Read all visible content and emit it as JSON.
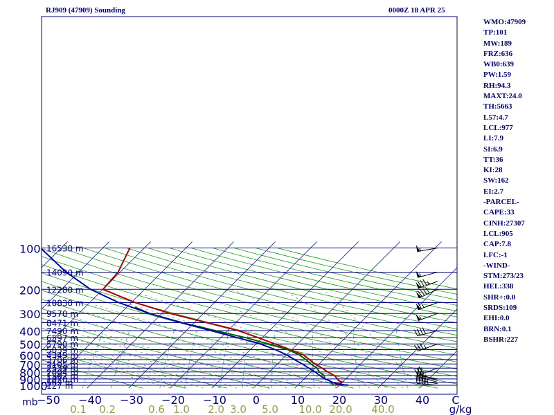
{
  "header": {
    "station": "RJ909 (47909) Sounding",
    "time": "0000Z 18 APR 25"
  },
  "indices": [
    "WMO:47909",
    "TP:101",
    "MW:189",
    "FRZ:636",
    "WB0:639",
    "PW:1.59",
    "RH:94.3",
    "MAXT:24.0",
    "TH:5663",
    "L57:4.7",
    "LCL:977",
    "LI:7.9",
    "SI:6.9",
    "TT:36",
    "KI:28",
    "SW:162",
    "EI:2.7",
    "-PARCEL-",
    "CAPE:33",
    "CINH:27307",
    "LCL:905",
    "CAP:7.8",
    "LFC:-1",
    "-WIND-",
    "STM:273/23",
    "HEL:338",
    "SHR+:0.0",
    "SRDS:109",
    "EHI:0.0",
    "BRN:0.1",
    "BSHR:227"
  ],
  "chart_data": {
    "type": "line",
    "title": "RJ909 (47909) Sounding",
    "xlabel": "",
    "ylabel": "mb",
    "x_unit": "C",
    "xlim": [
      -50,
      50
    ],
    "pressure_range": [
      1000,
      100
    ],
    "pressure_ticks": [
      100,
      200,
      300,
      400,
      500,
      600,
      700,
      800,
      900,
      1000
    ],
    "temperature_ticks": [
      -50,
      -40,
      -30,
      -20,
      -10,
      0,
      10,
      20,
      30,
      40
    ],
    "mixing_ratio_labels": [
      "0.1",
      "0.2",
      "0.6",
      "1.0",
      "2.0",
      "3.0",
      "5.0",
      "10.0",
      "20.0",
      "40.0"
    ],
    "mixing_ratio_unit": "g/kg",
    "height_levels": [
      {
        "p": 100,
        "label": "16530 m"
      },
      {
        "p": 150,
        "label": "14090 m"
      },
      {
        "p": 200,
        "label": "12280 m"
      },
      {
        "p": 250,
        "label": "10830 m"
      },
      {
        "p": 300,
        "label": "9570 m"
      },
      {
        "p": 350,
        "label": "8471 m"
      },
      {
        "p": 400,
        "label": "7490 m"
      },
      {
        "p": 450,
        "label": "6597 m"
      },
      {
        "p": 500,
        "label": "5790 m"
      },
      {
        "p": 550,
        "label": "5039 m"
      },
      {
        "p": 600,
        "label": "4349 m"
      },
      {
        "p": 650,
        "label": "3706 m"
      },
      {
        "p": 700,
        "label": "3105 m"
      },
      {
        "p": 750,
        "label": "2539 m"
      },
      {
        "p": 800,
        "label": "2004 m"
      },
      {
        "p": 850,
        "label": "1502 m"
      },
      {
        "p": 900,
        "label": "1020 m"
      },
      {
        "p": 950,
        "label": "562 m"
      },
      {
        "p": 1000,
        "label": "127 m"
      }
    ],
    "series": [
      {
        "name": "",
        "color": "#aa0000",
        "points": [
          [
            1000,
            19
          ],
          [
            975,
            19.8
          ],
          [
            950,
            20
          ],
          [
            925,
            18.7
          ],
          [
            900,
            18
          ],
          [
            850,
            16.5
          ],
          [
            800,
            14
          ],
          [
            750,
            11.7
          ],
          [
            700,
            9
          ],
          [
            650,
            6.6
          ],
          [
            600,
            4
          ],
          [
            550,
            -0.4
          ],
          [
            500,
            -5.5
          ],
          [
            450,
            -11
          ],
          [
            400,
            -17.5
          ],
          [
            350,
            -27
          ],
          [
            300,
            -38
          ],
          [
            250,
            -49
          ],
          [
            200,
            -60
          ],
          [
            150,
            -60.5
          ],
          [
            100,
            -63.5
          ]
        ]
      },
      {
        "name": "",
        "color": "#006000",
        "points": [
          [
            1000,
            18.5
          ],
          [
            975,
            18
          ],
          [
            950,
            17.2
          ],
          [
            925,
            16.5
          ],
          [
            900,
            15
          ],
          [
            850,
            14
          ],
          [
            800,
            12
          ],
          [
            750,
            10.5
          ],
          [
            700,
            8
          ],
          [
            650,
            5.8
          ],
          [
            600,
            3
          ],
          [
            550,
            -1
          ],
          [
            500,
            -7
          ],
          [
            450,
            -14
          ],
          [
            400,
            -23
          ],
          [
            350,
            -33
          ],
          [
            300,
            -43
          ],
          [
            270,
            -48
          ]
        ]
      },
      {
        "name": "",
        "color": "#0000aa",
        "points": [
          [
            1000,
            22
          ],
          [
            975,
            19
          ],
          [
            950,
            17.5
          ],
          [
            925,
            16.5
          ],
          [
            900,
            15
          ],
          [
            850,
            13
          ],
          [
            800,
            11
          ],
          [
            750,
            8.5
          ],
          [
            700,
            6
          ],
          [
            650,
            3
          ],
          [
            600,
            0
          ],
          [
            550,
            -4
          ],
          [
            500,
            -9
          ],
          [
            450,
            -16
          ],
          [
            400,
            -24
          ],
          [
            350,
            -33
          ],
          [
            300,
            -43
          ],
          [
            250,
            -53
          ],
          [
            200,
            -63
          ],
          [
            150,
            -73
          ],
          [
            100,
            -85
          ]
        ]
      }
    ],
    "wind_barbs": [
      {
        "p": 1000,
        "dir": 275,
        "spd": 45
      },
      {
        "p": 975,
        "dir": 280,
        "spd": 40
      },
      {
        "p": 950,
        "dir": 285,
        "spd": 30
      },
      {
        "p": 925,
        "dir": 290,
        "spd": 20
      },
      {
        "p": 900,
        "dir": 280,
        "spd": 5
      },
      {
        "p": 750,
        "dir": 250,
        "spd": 30
      },
      {
        "p": 500,
        "dir": 250,
        "spd": 35
      },
      {
        "p": 400,
        "dir": 255,
        "spd": 40
      },
      {
        "p": 300,
        "dir": 250,
        "spd": 55
      },
      {
        "p": 250,
        "dir": 250,
        "spd": 65
      },
      {
        "p": 200,
        "dir": 245,
        "spd": 90
      },
      {
        "p": 175,
        "dir": 250,
        "spd": 85
      },
      {
        "p": 150,
        "dir": 255,
        "spd": 55
      },
      {
        "p": 100,
        "dir": 260,
        "spd": 55
      }
    ]
  }
}
